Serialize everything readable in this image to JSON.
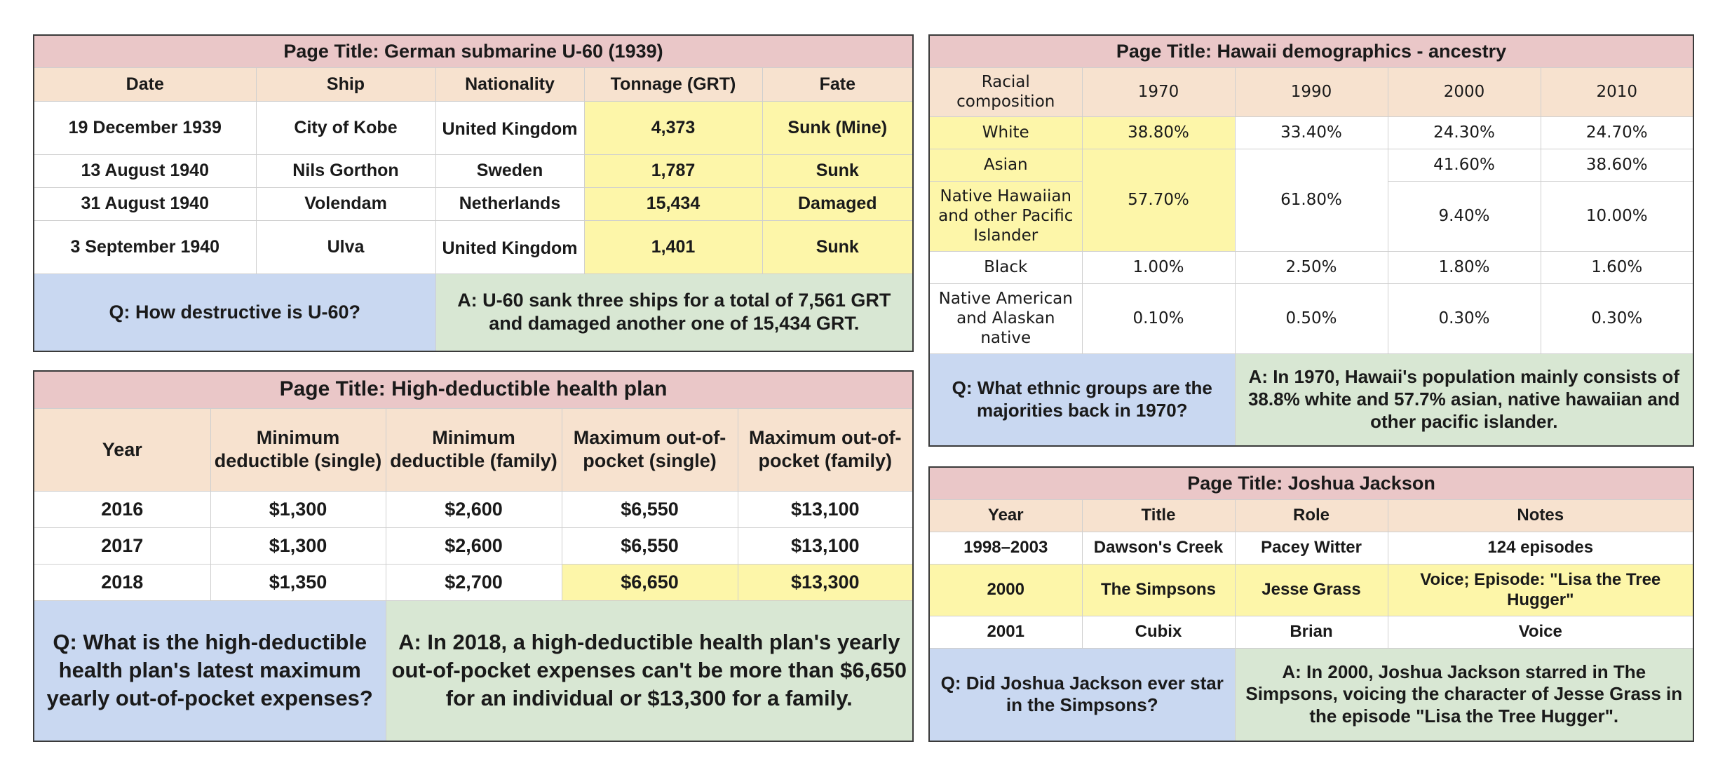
{
  "u60": {
    "page_title": "Page Title: German submarine U-60 (1939)",
    "headers": [
      "Date",
      "Ship",
      "Nationality",
      "Tonnage (GRT)",
      "Fate"
    ],
    "rows": [
      [
        "19 December 1939",
        "City of Kobe",
        "United Kingdom",
        "4,373",
        "Sunk (Mine)"
      ],
      [
        "13 August 1940",
        "Nils Gorthon",
        "Sweden",
        "1,787",
        "Sunk"
      ],
      [
        "31 August 1940",
        "Volendam",
        "Netherlands",
        "15,434",
        "Damaged"
      ],
      [
        "3 September 1940",
        "Ulva",
        "United Kingdom",
        "1,401",
        "Sunk"
      ]
    ],
    "question": "Q: How destructive is U-60?",
    "answer": "A: U-60 sank three ships for a total of 7,561 GRT and damaged another one of 15,434 GRT."
  },
  "hdhp": {
    "page_title": "Page Title: High-deductible health plan",
    "headers": [
      "Year",
      "Minimum deductible (single)",
      "Minimum deductible (family)",
      "Maximum out-of-pocket (single)",
      "Maximum out-of-pocket (family)"
    ],
    "rows": [
      [
        "2016",
        "$1,300",
        "$2,600",
        "$6,550",
        "$13,100"
      ],
      [
        "2017",
        "$1,300",
        "$2,600",
        "$6,550",
        "$13,100"
      ],
      [
        "2018",
        "$1,350",
        "$2,700",
        "$6,650",
        "$13,300"
      ]
    ],
    "question": "Q: What is the high-deductible health plan's latest maximum yearly out-of-pocket expenses?",
    "answer": "A: In 2018, a high-deductible health plan's yearly out-of-pocket expenses can't be more than $6,650 for an individual or $13,300 for a family."
  },
  "hawaii": {
    "page_title": "Page Title: Hawaii demographics - ancestry",
    "headers": [
      "Racial composition",
      "1970",
      "1990",
      "2000",
      "2010"
    ],
    "rows": {
      "white": [
        "White",
        "38.80%",
        "33.40%",
        "24.30%",
        "24.70%"
      ],
      "asian": [
        "Asian",
        "41.60%",
        "38.60%"
      ],
      "nhopi": [
        "Native Hawaiian and other Pacific Islander",
        "9.40%",
        "10.00%"
      ],
      "merged_1970": "57.70%",
      "merged_1990": "61.80%",
      "black": [
        "Black",
        "1.00%",
        "2.50%",
        "1.80%",
        "1.60%"
      ],
      "native_american": [
        "Native American and Alaskan native",
        "0.10%",
        "0.50%",
        "0.30%",
        "0.30%"
      ]
    },
    "question": "Q: What ethnic groups are the majorities back in 1970?",
    "answer": "A: In 1970, Hawaii's population mainly consists of 38.8% white and 57.7% asian, native hawaiian and other pacific islander."
  },
  "jackson": {
    "page_title": "Page Title: Joshua Jackson",
    "headers": [
      "Year",
      "Title",
      "Role",
      "Notes"
    ],
    "rows": [
      [
        "1998–2003",
        "Dawson's Creek",
        "Pacey Witter",
        "124 episodes"
      ],
      [
        "2000",
        "The Simpsons",
        "Jesse Grass",
        "Voice; Episode: \"Lisa the Tree Hugger\""
      ],
      [
        "2001",
        "Cubix",
        "Brian",
        "Voice"
      ]
    ],
    "question": "Q: Did Joshua Jackson ever star in the Simpsons?",
    "answer": "A: In 2000, Joshua Jackson starred in The Simpsons, voicing the character of Jesse Grass in the episode \"Lisa the Tree Hugger\"."
  },
  "colors": {
    "title_bg": "#eac7c8",
    "header_bg": "#f7e2cf",
    "highlight": "#fdf6a9",
    "question_bg": "#c9d8f1",
    "answer_bg": "#d8e7d3"
  }
}
